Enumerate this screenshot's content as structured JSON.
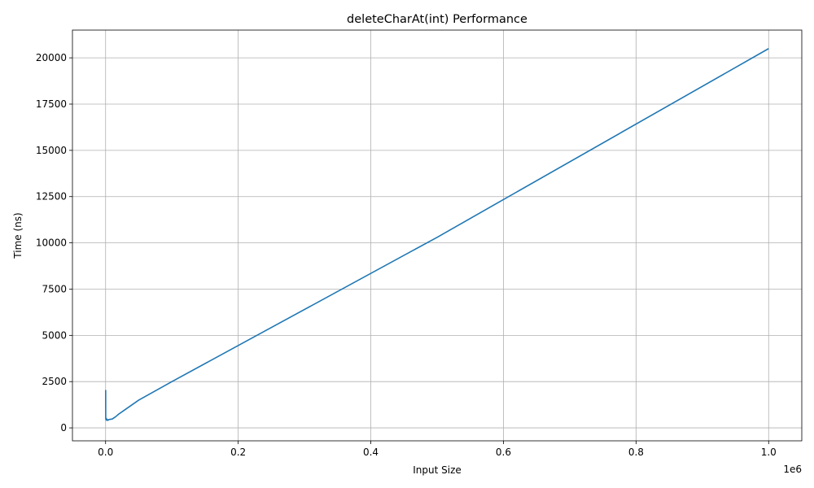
{
  "chart_data": {
    "type": "line",
    "title": "deleteCharAt(int) Performance",
    "xlabel": "Input Size",
    "ylabel": "Time (ns)",
    "x_offset_label": "1e6",
    "xlim": [
      -50000,
      1050000
    ],
    "ylim": [
      -700,
      21500
    ],
    "x_ticks": [
      0,
      200000,
      400000,
      600000,
      800000,
      1000000
    ],
    "x_tick_labels": [
      "0.0",
      "0.2",
      "0.4",
      "0.6",
      "0.8",
      "1.0"
    ],
    "y_ticks": [
      0,
      2500,
      5000,
      7500,
      10000,
      12500,
      15000,
      17500,
      20000
    ],
    "y_tick_labels": [
      "0",
      "2500",
      "5000",
      "7500",
      "10000",
      "12500",
      "15000",
      "17500",
      "20000"
    ],
    "grid": true,
    "line_color": "#1f77b4",
    "series": [
      {
        "x": [
          100,
          200,
          300,
          500,
          1000,
          2000,
          3000,
          5000,
          10000,
          15000,
          20000,
          30000,
          50000,
          100000,
          200000,
          500000,
          1000000
        ],
        "values": [
          2050,
          500,
          550,
          450,
          420,
          480,
          400,
          450,
          480,
          600,
          750,
          1000,
          1500,
          2500,
          4450,
          10300,
          20500
        ]
      }
    ]
  }
}
